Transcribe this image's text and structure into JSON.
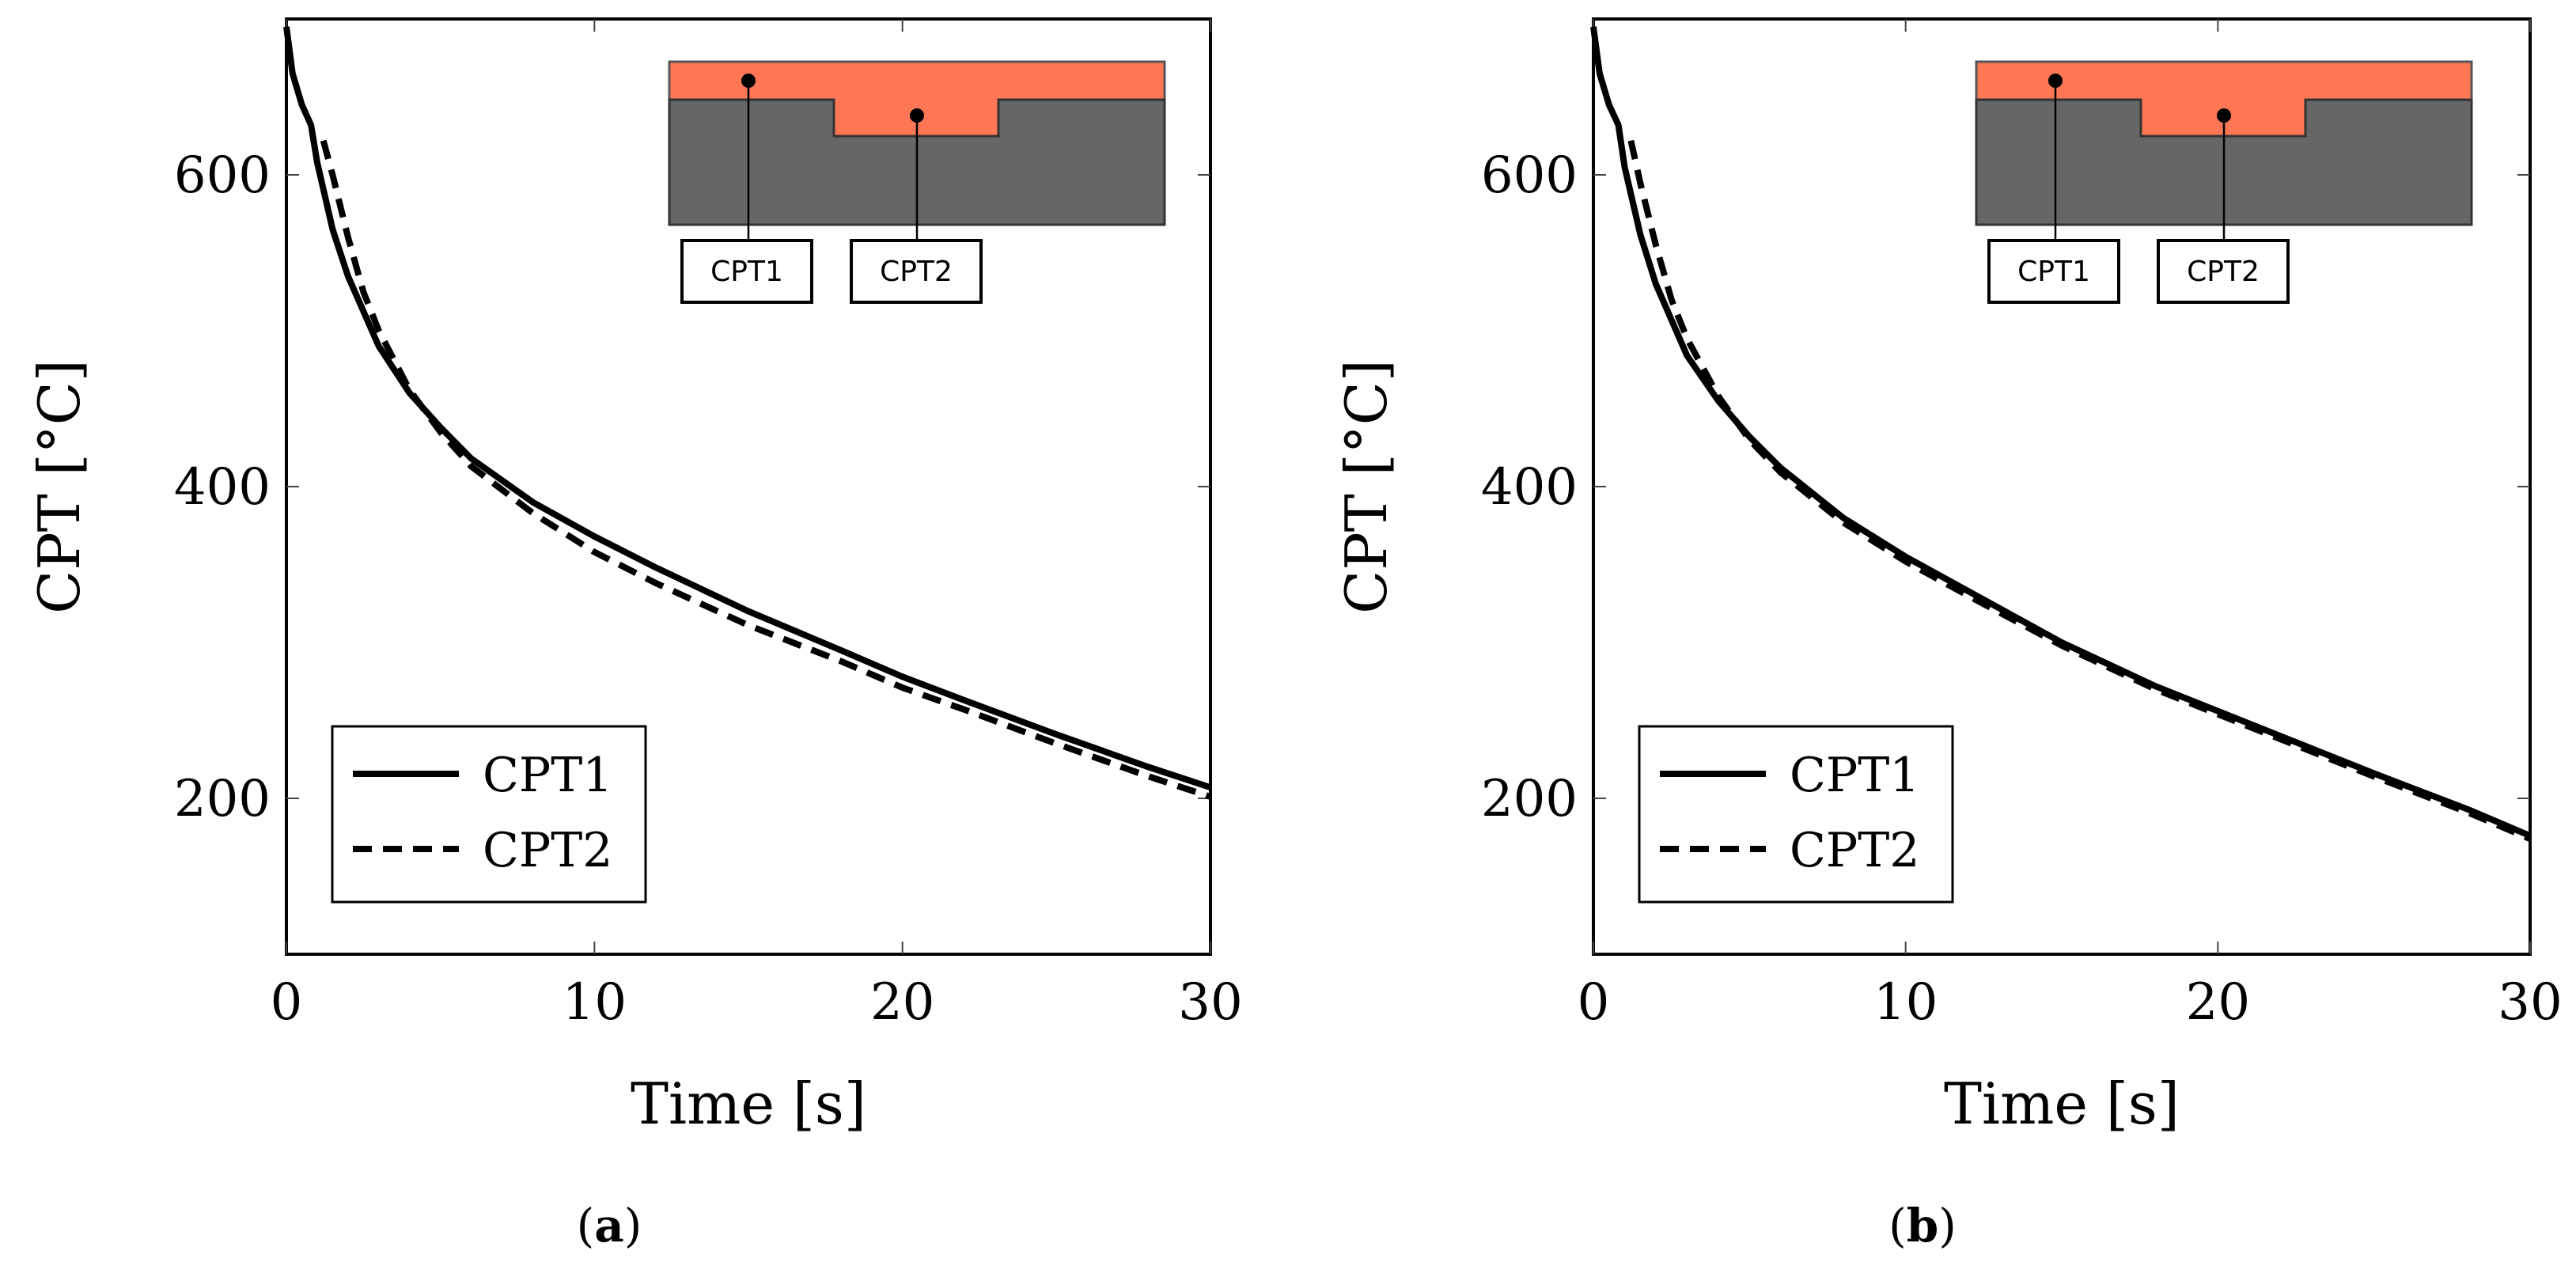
{
  "chart_data": [
    {
      "type": "line",
      "panel_label": "a",
      "xlabel": "Time [s]",
      "ylabel": "CPT [°C]",
      "xlim": [
        0,
        30
      ],
      "ylim": [
        100,
        700
      ],
      "xticks": [
        0,
        10,
        20,
        30
      ],
      "yticks": [
        200,
        400,
        600
      ],
      "grid": false,
      "legend_position": "bottom-left",
      "inset_labels": [
        "CPT1",
        "CPT2"
      ],
      "series": [
        {
          "name": "CPT1",
          "style": "solid",
          "x": [
            0,
            0.2,
            0.5,
            0.8,
            1,
            1.5,
            2,
            3,
            4,
            5,
            6,
            8,
            10,
            12,
            15,
            18,
            20,
            22,
            25,
            28,
            30
          ],
          "y": [
            695,
            665,
            645,
            632,
            608,
            565,
            535,
            490,
            460,
            438,
            418,
            390,
            368,
            348,
            320,
            295,
            278,
            263,
            241,
            220,
            207
          ]
        },
        {
          "name": "CPT2",
          "style": "dashed",
          "x": [
            1.2,
            1.5,
            2,
            2.5,
            3,
            4,
            5,
            6,
            8,
            10,
            12,
            15,
            18,
            20,
            22,
            25,
            28,
            30
          ],
          "y": [
            622,
            600,
            560,
            525,
            500,
            462,
            435,
            413,
            383,
            358,
            338,
            311,
            288,
            271,
            257,
            235,
            214,
            201
          ]
        }
      ]
    },
    {
      "type": "line",
      "panel_label": "b",
      "xlabel": "Time [s]",
      "ylabel": "CPT [°C]",
      "xlim": [
        0,
        30
      ],
      "ylim": [
        100,
        700
      ],
      "xticks": [
        0,
        10,
        20,
        30
      ],
      "yticks": [
        200,
        400,
        600
      ],
      "grid": false,
      "legend_position": "bottom-left",
      "inset_labels": [
        "CPT1",
        "CPT2"
      ],
      "series": [
        {
          "name": "CPT1",
          "style": "solid",
          "x": [
            0,
            0.2,
            0.5,
            0.8,
            1,
            1.5,
            2,
            3,
            4,
            5,
            6,
            8,
            10,
            12,
            15,
            18,
            20,
            22,
            25,
            28,
            30
          ],
          "y": [
            695,
            665,
            645,
            632,
            605,
            562,
            530,
            484,
            455,
            432,
            412,
            380,
            355,
            333,
            300,
            272,
            256,
            240,
            216,
            193,
            176
          ]
        },
        {
          "name": "CPT2",
          "style": "dashed",
          "x": [
            1.2,
            1.5,
            2,
            2.5,
            3,
            4,
            5,
            6,
            8,
            10,
            12,
            15,
            18,
            20,
            22,
            25,
            28,
            30
          ],
          "y": [
            622,
            595,
            555,
            520,
            495,
            458,
            430,
            409,
            377,
            352,
            330,
            298,
            270,
            254,
            238,
            214,
            191,
            174
          ]
        }
      ]
    }
  ]
}
